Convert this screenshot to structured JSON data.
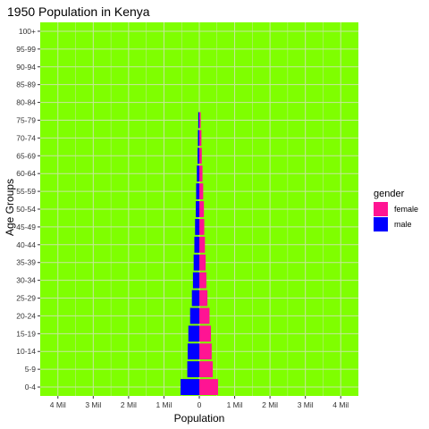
{
  "chart_data": {
    "type": "bar",
    "orientation": "horizontal",
    "title": "1950 Population in Kenya",
    "xlabel": "Population",
    "ylabel": "Age Groups",
    "xlim": [
      -4.5,
      4.5
    ],
    "x_ticks": [
      -4,
      -3,
      -2,
      -1,
      0,
      1,
      2,
      3,
      4
    ],
    "x_tick_labels": [
      "4 Mil",
      "3 Mil",
      "2 Mil",
      "1 Mil",
      "0",
      "1 Mil",
      "2 Mil",
      "3 Mil",
      "4 Mil"
    ],
    "categories": [
      "0-4",
      "5-9",
      "10-14",
      "15-19",
      "20-24",
      "25-29",
      "30-34",
      "35-39",
      "40-44",
      "45-49",
      "50-54",
      "55-59",
      "60-64",
      "65-69",
      "70-74",
      "75-79",
      "80-84",
      "85-89",
      "90-94",
      "95-99",
      "100+"
    ],
    "series": [
      {
        "name": "female",
        "color": "#FF1493",
        "values": [
          0.53,
          0.38,
          0.35,
          0.33,
          0.29,
          0.23,
          0.2,
          0.18,
          0.16,
          0.14,
          0.13,
          0.11,
          0.09,
          0.07,
          0.06,
          0.04,
          0.0,
          0.0,
          0.0,
          0.0,
          0.0
        ]
      },
      {
        "name": "male",
        "color": "#0000FF",
        "values": [
          -0.53,
          -0.34,
          -0.33,
          -0.31,
          -0.26,
          -0.21,
          -0.18,
          -0.16,
          -0.14,
          -0.12,
          -0.1,
          -0.09,
          -0.07,
          -0.05,
          -0.04,
          -0.03,
          0.0,
          0.0,
          0.0,
          0.0,
          0.0
        ]
      }
    ],
    "legend": {
      "title": "gender",
      "entries": [
        "female",
        "male"
      ],
      "position": "right"
    },
    "grid": true,
    "panel_background": "#7FFF00",
    "grid_color": "#C8E6A0"
  }
}
